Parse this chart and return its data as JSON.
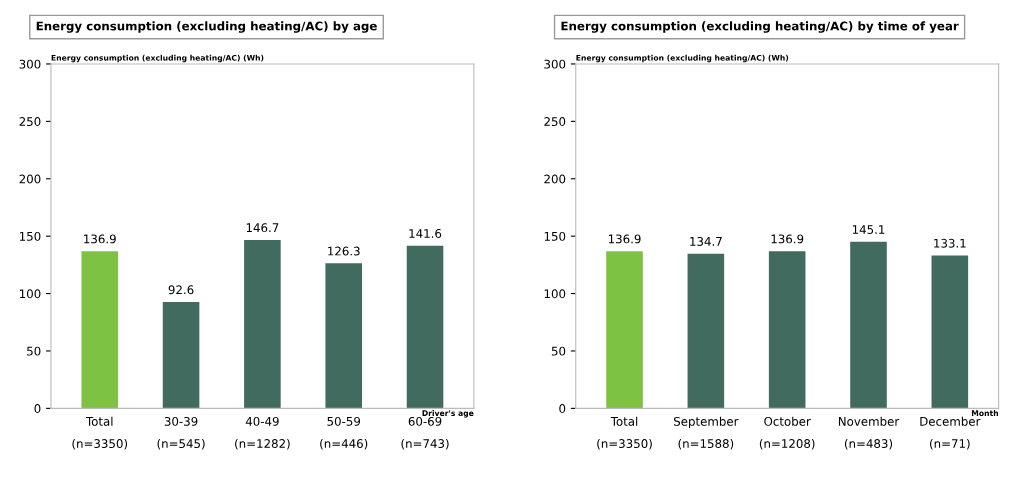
{
  "chart_data": [
    {
      "type": "bar",
      "title": "Energy consumption (excluding heating/AC) by age",
      "ylabel": "Energy consumption (excluding heating/AC) (Wh)",
      "xlabel": "Driver's age",
      "categories": [
        "Total\n(n=3350)",
        "30-39\n(n=545)",
        "40-49\n(n=1282)",
        "50-59\n(n=446)",
        "60-69\n(n=743)"
      ],
      "values": [
        136.9,
        92.6,
        146.7,
        126.3,
        141.6
      ],
      "colors": [
        "#7dc242",
        "#426b5f",
        "#426b5f",
        "#426b5f",
        "#426b5f"
      ],
      "ylim": [
        0,
        300
      ],
      "yticks": [
        0,
        50,
        100,
        150,
        200,
        250,
        300
      ],
      "grid": false,
      "data_labels": true
    },
    {
      "type": "bar",
      "title": "Energy consumption (excluding heating/AC) by time of year",
      "ylabel": "Energy consumption (excluding heating/AC) (Wh)",
      "xlabel": "Month",
      "categories": [
        "Total\n(n=3350)",
        "September\n(n=1588)",
        "October\n(n=1208)",
        "November\n(n=483)",
        "December\n(n=71)"
      ],
      "values": [
        136.9,
        134.7,
        136.9,
        145.1,
        133.1
      ],
      "colors": [
        "#7dc242",
        "#426b5f",
        "#426b5f",
        "#426b5f",
        "#426b5f"
      ],
      "ylim": [
        0,
        300
      ],
      "yticks": [
        0,
        50,
        100,
        150,
        200,
        250,
        300
      ],
      "grid": false,
      "data_labels": true
    }
  ]
}
